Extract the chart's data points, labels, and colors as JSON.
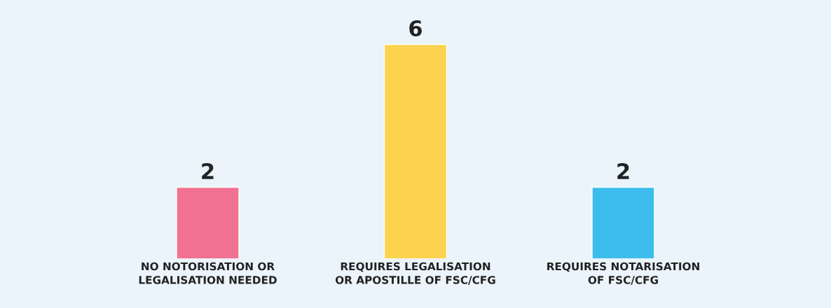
{
  "chart_data": {
    "type": "bar",
    "categories": [
      "NO NOTORISATION OR\nLEGALISATION NEEDED",
      "REQUIRES LEGALISATION\nOR APOSTILLE OF FSC/CFG",
      "REQUIRES NOTARISATION\nOF FSC/CFG"
    ],
    "values": [
      2,
      6,
      2
    ],
    "colors": [
      "#f07191",
      "#fcd34f",
      "#3dbcee"
    ],
    "data_labels": true
  }
}
